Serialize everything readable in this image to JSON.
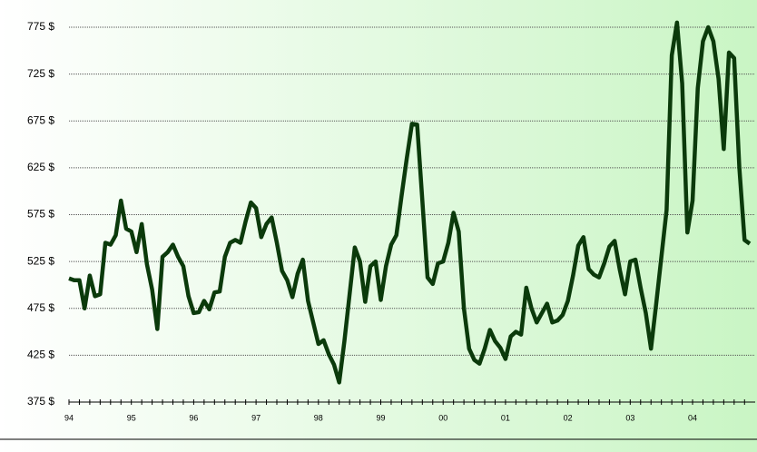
{
  "chart_data": {
    "type": "line",
    "categories": [
      "94",
      null,
      null,
      null,
      null,
      null,
      null,
      null,
      null,
      null,
      null,
      null,
      "95",
      null,
      null,
      null,
      null,
      null,
      null,
      null,
      null,
      null,
      null,
      null,
      "96",
      null,
      null,
      null,
      null,
      null,
      null,
      null,
      null,
      null,
      null,
      null,
      "97",
      null,
      null,
      null,
      null,
      null,
      null,
      null,
      null,
      null,
      null,
      null,
      "98",
      null,
      null,
      null,
      null,
      null,
      null,
      null,
      null,
      null,
      null,
      null,
      "99",
      null,
      null,
      null,
      null,
      null,
      null,
      null,
      null,
      null,
      null,
      null,
      "00",
      null,
      null,
      null,
      null,
      null,
      null,
      null,
      null,
      null,
      null,
      null,
      "01",
      null,
      null,
      null,
      null,
      null,
      null,
      null,
      null,
      null,
      null,
      null,
      "02",
      null,
      null,
      null,
      null,
      null,
      null,
      null,
      null,
      null,
      null,
      null,
      "03",
      null,
      null,
      null,
      null,
      null,
      null,
      null,
      null,
      null,
      null,
      null,
      "04",
      null,
      null,
      null,
      null,
      null,
      null,
      null,
      null,
      null,
      null,
      null
    ],
    "series": [
      {
        "color": "#0b3a0b",
        "values": [
          507,
          505,
          505,
          475,
          510,
          488,
          490,
          545,
          543,
          553,
          590,
          560,
          557,
          535,
          565,
          522,
          495,
          453,
          530,
          535,
          543,
          530,
          520,
          488,
          470,
          471,
          483,
          474,
          492,
          493,
          530,
          545,
          548,
          545,
          568,
          588,
          582,
          551,
          565,
          572,
          545,
          515,
          505,
          487,
          512,
          527,
          483,
          460,
          437,
          441,
          426,
          415,
          396,
          440,
          490,
          540,
          525,
          482,
          520,
          525,
          484,
          520,
          543,
          553,
          595,
          635,
          672,
          671,
          590,
          508,
          501,
          523,
          525,
          545,
          577,
          557,
          475,
          432,
          420,
          416,
          432,
          452,
          440,
          433,
          421,
          445,
          450,
          447,
          497,
          475,
          460,
          470,
          480,
          460,
          462,
          468,
          483,
          510,
          542,
          551,
          517,
          511,
          508,
          523,
          541,
          547,
          516,
          490,
          525,
          527,
          497,
          470,
          432,
          480,
          530,
          580,
          745,
          780,
          715,
          556,
          590,
          710,
          760,
          775,
          760,
          720,
          645,
          748,
          742,
          625,
          548,
          544
        ]
      }
    ],
    "ylim": [
      375,
      775
    ],
    "yticks": [
      {
        "value": 375,
        "label": "375 $"
      },
      {
        "value": 425,
        "label": "425 $"
      },
      {
        "value": 475,
        "label": "475 $"
      },
      {
        "value": 525,
        "label": "525 $"
      },
      {
        "value": 575,
        "label": "575 $"
      },
      {
        "value": 625,
        "label": "625 $"
      },
      {
        "value": 675,
        "label": "675 $"
      },
      {
        "value": 725,
        "label": "725 $"
      },
      {
        "value": 775,
        "label": "775 $"
      }
    ],
    "grid": true
  }
}
